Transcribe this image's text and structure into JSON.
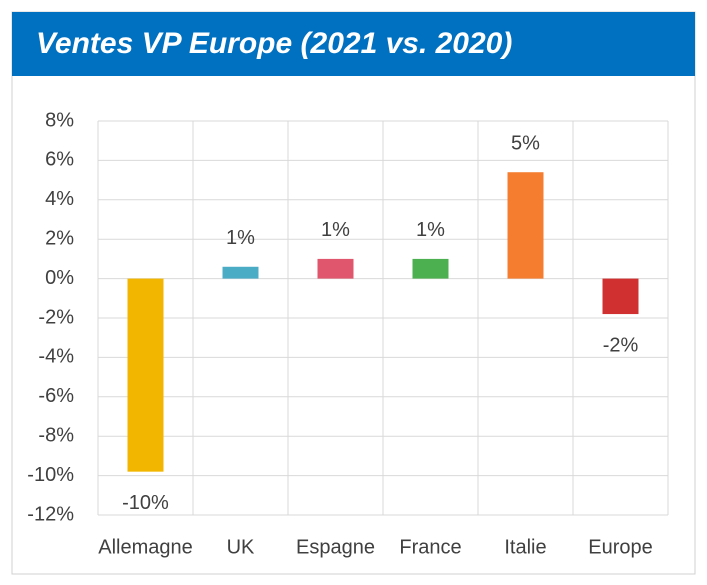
{
  "chart_data": {
    "type": "bar",
    "title": "Ventes VP Europe (2021 vs. 2020)",
    "categories": [
      "Allemagne",
      "UK",
      "Espagne",
      "France",
      "Italie",
      "Europe"
    ],
    "values": [
      -9.8,
      0.6,
      1.0,
      1.0,
      5.4,
      -1.8
    ],
    "value_labels": [
      "-10%",
      "1%",
      "1%",
      "1%",
      "5%",
      "-2%"
    ],
    "colors": [
      "#f2b600",
      "#4bacc6",
      "#e0566c",
      "#4caf50",
      "#f47d30",
      "#d0302f"
    ],
    "ylim": [
      -12,
      8
    ],
    "yticks": [
      {
        "value": -12,
        "label": "-12%"
      },
      {
        "value": -10,
        "label": "-10%"
      },
      {
        "value": -8,
        "label": "-8%"
      },
      {
        "value": -6,
        "label": "-6%"
      },
      {
        "value": -4,
        "label": "-4%"
      },
      {
        "value": -2,
        "label": "-2%"
      },
      {
        "value": 0,
        "label": "0%"
      },
      {
        "value": 2,
        "label": "2%"
      },
      {
        "value": 4,
        "label": "4%"
      },
      {
        "value": 6,
        "label": "6%"
      },
      {
        "value": 8,
        "label": "8%"
      }
    ],
    "grid": true
  }
}
